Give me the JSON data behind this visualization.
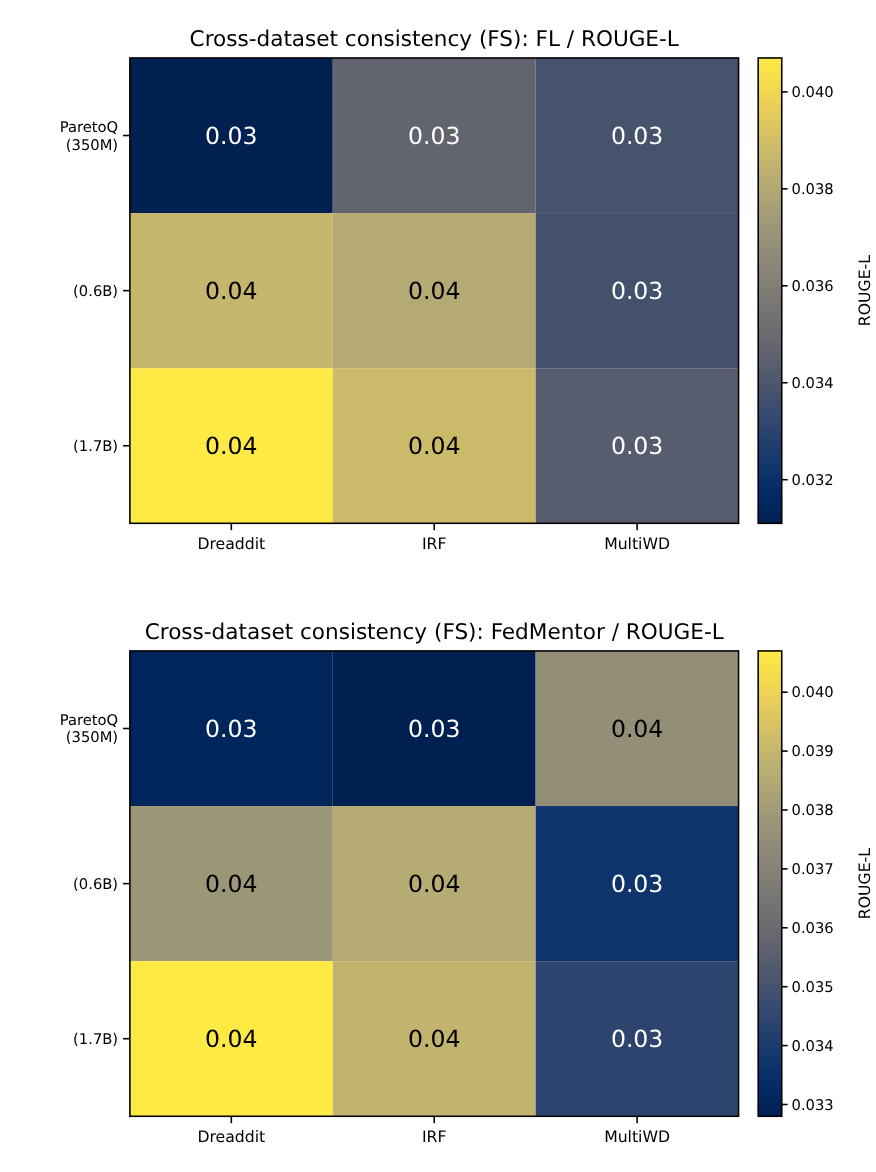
{
  "chart_data": [
    {
      "type": "heatmap",
      "title": "Cross-dataset consistency (FS): FL / ROUGE-L",
      "clabel": "ROUGE-L",
      "categories": [
        "Dreaddit",
        "IRF",
        "MultiWD"
      ],
      "y_categories": [
        "ParetoQ\n(350M)",
        "(0.6B)",
        "(1.7B)"
      ],
      "cells": [
        [
          0.0311,
          0.0347,
          0.0338
        ],
        [
          0.0386,
          0.0381,
          0.0337
        ],
        [
          0.0407,
          0.0388,
          0.0343
        ]
      ],
      "cell_labels": [
        [
          "0.03",
          "0.03",
          "0.03"
        ],
        [
          "0.04",
          "0.04",
          "0.03"
        ],
        [
          "0.04",
          "0.04",
          "0.03"
        ]
      ],
      "clim": [
        0.0311,
        0.0407
      ],
      "cticks": [
        {
          "value": 0.032,
          "label": "0.032"
        },
        {
          "value": 0.034,
          "label": "0.034"
        },
        {
          "value": 0.036,
          "label": "0.036"
        },
        {
          "value": 0.038,
          "label": "0.038"
        },
        {
          "value": 0.04,
          "label": "0.040"
        }
      ]
    },
    {
      "type": "heatmap",
      "title": "Cross-dataset consistency (FS): FedMentor / ROUGE-L",
      "clabel": "ROUGE-L",
      "categories": [
        "Dreaddit",
        "IRF",
        "MultiWD"
      ],
      "y_categories": [
        "ParetoQ\n(350M)",
        "(0.6B)",
        "(1.7B)"
      ],
      "cells": [
        [
          0.033,
          0.0328,
          0.0375
        ],
        [
          0.0378,
          0.0386,
          0.0337
        ],
        [
          0.0407,
          0.0389,
          0.0344
        ]
      ],
      "cell_labels": [
        [
          "0.03",
          "0.03",
          "0.04"
        ],
        [
          "0.04",
          "0.04",
          "0.03"
        ],
        [
          "0.04",
          "0.04",
          "0.03"
        ]
      ],
      "clim": [
        0.0328,
        0.0407
      ],
      "cticks": [
        {
          "value": 0.033,
          "label": "0.033"
        },
        {
          "value": 0.034,
          "label": "0.034"
        },
        {
          "value": 0.035,
          "label": "0.035"
        },
        {
          "value": 0.036,
          "label": "0.036"
        },
        {
          "value": 0.037,
          "label": "0.037"
        },
        {
          "value": 0.038,
          "label": "0.038"
        },
        {
          "value": 0.039,
          "label": "0.039"
        },
        {
          "value": 0.04,
          "label": "0.040"
        }
      ]
    }
  ]
}
